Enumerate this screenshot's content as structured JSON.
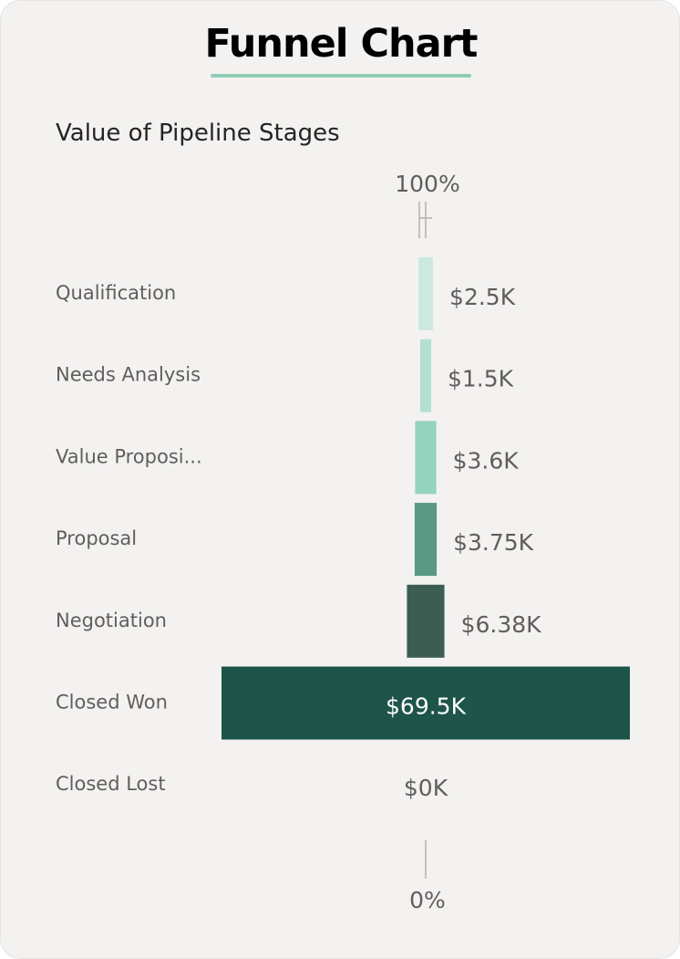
{
  "header": {
    "title": "Funnel Chart",
    "subtitle": "Value of Pipeline Stages"
  },
  "colors": {
    "card_background": "#f3f2f1",
    "accent_underline": "#8fcdb5",
    "category_text": "#605e5c",
    "value_text": "#605e5c",
    "inside_value_text": "#ffffff",
    "axis_line": "#b3b0ad"
  },
  "chart_data": {
    "type": "funnel",
    "top_percent_label": "100%",
    "bottom_percent_label": "0%",
    "categories": [
      "Qualification",
      "Needs Analysis",
      "Value Proposi...",
      "Proposal",
      "Negotiation",
      "Closed Won",
      "Closed Lost"
    ],
    "values": [
      2500,
      1500,
      3600,
      3750,
      6380,
      69500,
      0
    ],
    "value_labels": [
      "$2.5K",
      "$1.5K",
      "$3.6K",
      "$3.75K",
      "$6.38K",
      "$69.5K",
      "$0K"
    ],
    "bar_colors": [
      "#cde9df",
      "#b3e0d1",
      "#94d3bd",
      "#5a9a84",
      "#3c5e52",
      "#1e5449",
      "#1e5449"
    ]
  }
}
